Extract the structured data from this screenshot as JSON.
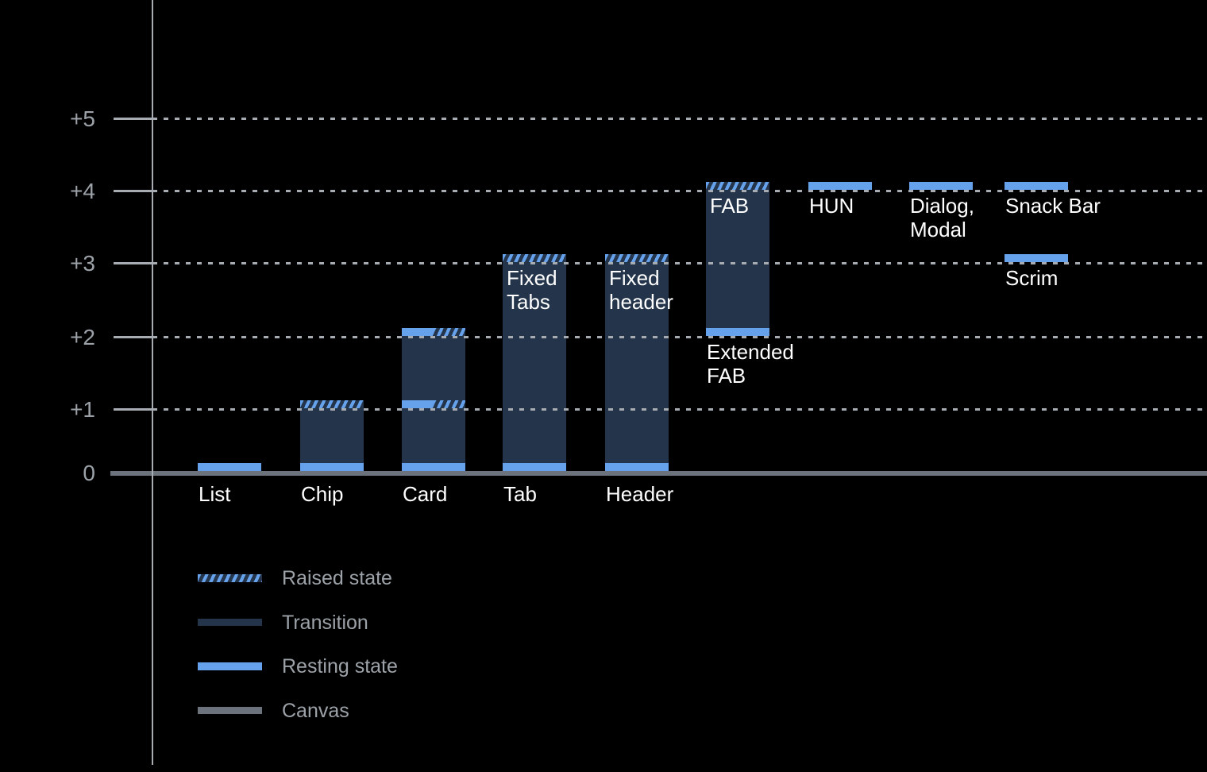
{
  "colors": {
    "background": "#000000",
    "resting_blue": "#66A2EB",
    "transition_navy": "#24344B",
    "canvas_gray": "#6C737C",
    "grid_gray": "#A7ACB2",
    "axis_text_gray": "#9CA2A8",
    "bar_text_white": "#FFFFFF"
  },
  "chart_data": {
    "type": "bar",
    "subject": "component elevation levels",
    "ylim": [
      0,
      5
    ],
    "y_tick_labels": [
      "0",
      "+1",
      "+2",
      "+3",
      "+4",
      "+5"
    ],
    "grid": "dotted horizontal gridlines at +1..+5, solid canvas baseline at 0",
    "legend_position": "bottom-left",
    "y_axis_ticks": [
      {
        "label": "+5",
        "level": 5
      },
      {
        "label": "+4",
        "level": 4
      },
      {
        "label": "+3",
        "level": 3
      },
      {
        "label": "+2",
        "level": 2
      },
      {
        "label": "+1",
        "level": 1
      },
      {
        "label": "0",
        "level": 0
      }
    ],
    "columns": [
      {
        "label": "List",
        "label_position": "below-baseline",
        "bands": [
          {
            "kind": "resting",
            "level": 0
          }
        ]
      },
      {
        "label": "Chip",
        "label_position": "below-baseline",
        "transition": [
          0,
          1
        ],
        "bands": [
          {
            "kind": "resting",
            "level": 0
          },
          {
            "kind": "raised",
            "level": 1
          }
        ]
      },
      {
        "label": "Card",
        "label_position": "below-baseline",
        "transition": [
          0,
          2
        ],
        "bands": [
          {
            "kind": "resting",
            "level": 0
          },
          {
            "kind": "resting-raised",
            "level": 1
          },
          {
            "kind": "resting-raised",
            "level": 2
          }
        ]
      },
      {
        "label": "Tab",
        "label_position": "below-baseline",
        "inner_label": "Fixed\nTabs",
        "transition": [
          0,
          3
        ],
        "bands": [
          {
            "kind": "resting",
            "level": 0
          },
          {
            "kind": "raised",
            "level": 3
          }
        ]
      },
      {
        "label": "Header",
        "label_position": "below-baseline",
        "inner_label": "Fixed\nheader",
        "transition": [
          0,
          3
        ],
        "bands": [
          {
            "kind": "resting",
            "level": 0
          },
          {
            "kind": "raised",
            "level": 3
          }
        ]
      },
      {
        "label": "Extended\nFAB",
        "label_position": "below-bar",
        "inner_label": "FAB",
        "transition": [
          2,
          4
        ],
        "bands": [
          {
            "kind": "resting",
            "level": 2
          },
          {
            "kind": "raised",
            "level": 4
          }
        ]
      },
      {
        "label": "HUN",
        "label_position": "below-band",
        "bands": [
          {
            "kind": "resting",
            "level": 4
          }
        ]
      },
      {
        "label": "Dialog,\nModal",
        "label_position": "below-band",
        "bands": [
          {
            "kind": "resting",
            "level": 4
          }
        ]
      },
      {
        "label": "Snack Bar",
        "label_position": "below-band",
        "bands": [
          {
            "kind": "resting",
            "level": 4
          }
        ]
      },
      {
        "label": "Scrim",
        "label_position": "below-band",
        "bands": [
          {
            "kind": "resting",
            "level": 3
          }
        ]
      }
    ],
    "legend": [
      {
        "label": "Raised state",
        "swatch": "raised"
      },
      {
        "label": "Transition",
        "swatch": "transition"
      },
      {
        "label": "Resting state",
        "swatch": "resting"
      },
      {
        "label": "Canvas",
        "swatch": "canvas"
      }
    ]
  }
}
